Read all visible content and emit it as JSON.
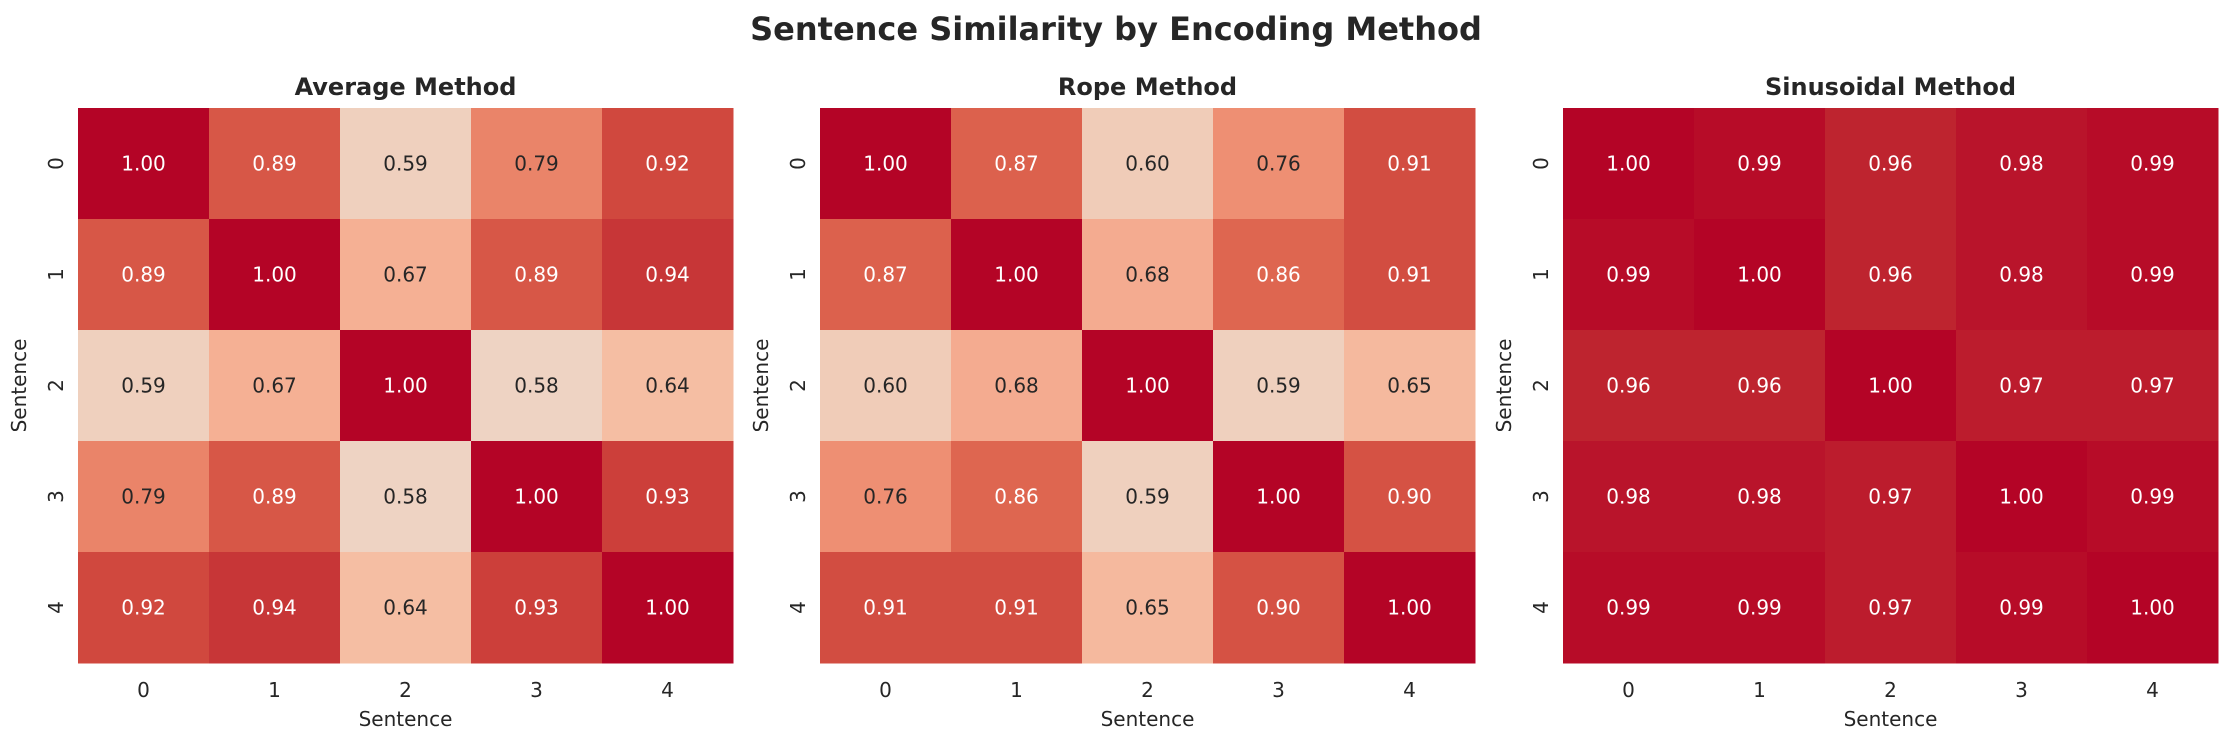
{
  "figure": {
    "title": "Sentence Similarity by Encoding Method"
  },
  "chart_data": [
    {
      "type": "heatmap",
      "title": "Average Method",
      "xlabel": "Sentence",
      "ylabel": "Sentence",
      "x_ticks": [
        "0",
        "1",
        "2",
        "3",
        "4"
      ],
      "y_ticks": [
        "0",
        "1",
        "2",
        "3",
        "4"
      ],
      "value_format": "2 decimals",
      "color_scale": "coolwarm (white to dark red)",
      "values": [
        [
          1.0,
          0.89,
          0.59,
          0.79,
          0.92
        ],
        [
          0.89,
          1.0,
          0.67,
          0.89,
          0.94
        ],
        [
          0.59,
          0.67,
          1.0,
          0.58,
          0.64
        ],
        [
          0.79,
          0.89,
          0.58,
          1.0,
          0.93
        ],
        [
          0.92,
          0.94,
          0.64,
          0.93,
          1.0
        ]
      ]
    },
    {
      "type": "heatmap",
      "title": "Rope Method",
      "xlabel": "Sentence",
      "ylabel": "Sentence",
      "x_ticks": [
        "0",
        "1",
        "2",
        "3",
        "4"
      ],
      "y_ticks": [
        "0",
        "1",
        "2",
        "3",
        "4"
      ],
      "value_format": "2 decimals",
      "color_scale": "coolwarm (white to dark red)",
      "values": [
        [
          1.0,
          0.87,
          0.6,
          0.76,
          0.91
        ],
        [
          0.87,
          1.0,
          0.68,
          0.86,
          0.91
        ],
        [
          0.6,
          0.68,
          1.0,
          0.59,
          0.65
        ],
        [
          0.76,
          0.86,
          0.59,
          1.0,
          0.9
        ],
        [
          0.91,
          0.91,
          0.65,
          0.9,
          1.0
        ]
      ]
    },
    {
      "type": "heatmap",
      "title": "Sinusoidal Method",
      "xlabel": "Sentence",
      "ylabel": "Sentence",
      "x_ticks": [
        "0",
        "1",
        "2",
        "3",
        "4"
      ],
      "y_ticks": [
        "0",
        "1",
        "2",
        "3",
        "4"
      ],
      "value_format": "2 decimals",
      "color_scale": "coolwarm (white to dark red)",
      "values": [
        [
          1.0,
          0.99,
          0.96,
          0.98,
          0.99
        ],
        [
          0.99,
          1.0,
          0.96,
          0.98,
          0.99
        ],
        [
          0.96,
          0.96,
          1.0,
          0.97,
          0.97
        ],
        [
          0.98,
          0.98,
          0.97,
          1.0,
          0.99
        ],
        [
          0.99,
          0.99,
          0.97,
          0.99,
          1.0
        ]
      ]
    }
  ]
}
